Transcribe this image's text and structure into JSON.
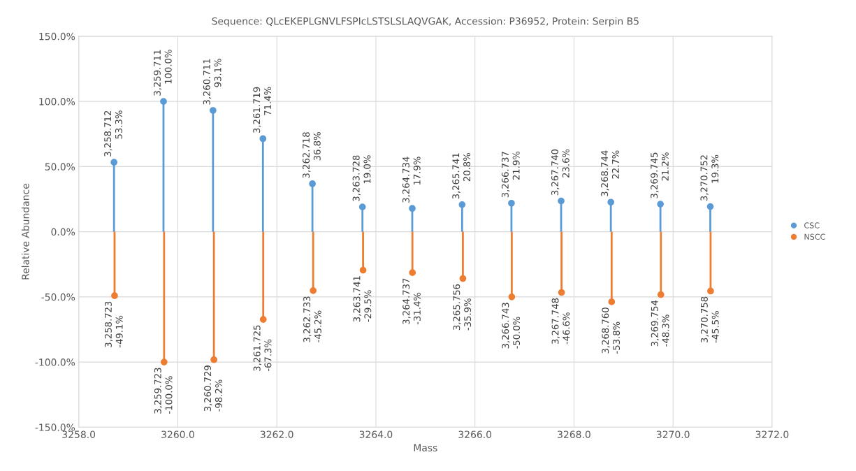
{
  "chart_data": {
    "type": "lollipop",
    "title": "Sequence: QLcEKEPLGNVLFSPIcLSTSLSLAQVGAK, Accession: P36952, Protein: Serpin B5",
    "xlabel": "Mass",
    "ylabel": "Relative Abundance",
    "xlim": [
      3258.0,
      3272.0
    ],
    "xticks": [
      {
        "value": 3258,
        "label": "3258.0"
      },
      {
        "value": 3260,
        "label": "3260.0"
      },
      {
        "value": 3262,
        "label": "3262.0"
      },
      {
        "value": 3264,
        "label": "3264.0"
      },
      {
        "value": 3266,
        "label": "3266.0"
      },
      {
        "value": 3268,
        "label": "3268.0"
      },
      {
        "value": 3270,
        "label": "3270.0"
      },
      {
        "value": 3272,
        "label": "3272.0"
      }
    ],
    "ylim": [
      -150,
      150
    ],
    "yticks": [
      {
        "value": -150,
        "label": "-150.0%"
      },
      {
        "value": -100,
        "label": "-100.0%"
      },
      {
        "value": -50,
        "label": "-50.0%"
      },
      {
        "value": 0,
        "label": "0.0%"
      },
      {
        "value": 50,
        "label": "50.0%"
      },
      {
        "value": 100,
        "label": "100.0%"
      },
      {
        "value": 150,
        "label": "150.0%"
      }
    ],
    "grid": true,
    "legend": "right",
    "marker": "circle",
    "series": [
      {
        "name": "CSC",
        "color": "#5b9bd5",
        "x": [
          3258.712,
          3259.711,
          3260.711,
          3261.719,
          3262.718,
          3263.728,
          3264.734,
          3265.741,
          3266.737,
          3267.74,
          3268.744,
          3269.745,
          3270.752
        ],
        "values": [
          53.3,
          100.0,
          93.1,
          71.4,
          36.8,
          19.0,
          17.9,
          20.8,
          21.9,
          23.6,
          22.7,
          21.2,
          19.3
        ],
        "value_labels": [
          "3,258.712\n53.3%",
          "3,259.711\n100.0%",
          "3,260.711\n93.1%",
          "3,261.719\n71.4%",
          "3,262.718\n36.8%",
          "3,263.728\n19.0%",
          "3,264.734\n17.9%",
          "3,265.741\n20.8%",
          "3,266.737\n21.9%",
          "3,267.740\n23.6%",
          "3,268.744\n22.7%",
          "3,269.745\n21.2%",
          "3,270.752\n19.3%"
        ]
      },
      {
        "name": "NSCC",
        "color": "#ed7d31",
        "x": [
          3258.723,
          3259.723,
          3260.729,
          3261.725,
          3262.733,
          3263.741,
          3264.737,
          3265.756,
          3266.743,
          3267.748,
          3268.76,
          3269.754,
          3270.758
        ],
        "values": [
          -49.1,
          -100.0,
          -98.2,
          -67.3,
          -45.2,
          -29.5,
          -31.4,
          -35.9,
          -50.0,
          -46.6,
          -53.8,
          -48.3,
          -45.5
        ],
        "value_labels": [
          "3,258.723\n-49.1%",
          "3,259.723\n-100.0%",
          "3,260.729\n-98.2%",
          "3,261.725\n-67.3%",
          "3,262.733\n-45.2%",
          "3,263.741\n-29.5%",
          "3,264.737\n-31.4%",
          "3,265.756\n-35.9%",
          "3,266.743\n-50.0%",
          "3,267.748\n-46.6%",
          "3,268.760\n-53.8%",
          "3,269.754\n-48.3%",
          "3,270.758\n-45.5%"
        ]
      }
    ]
  }
}
